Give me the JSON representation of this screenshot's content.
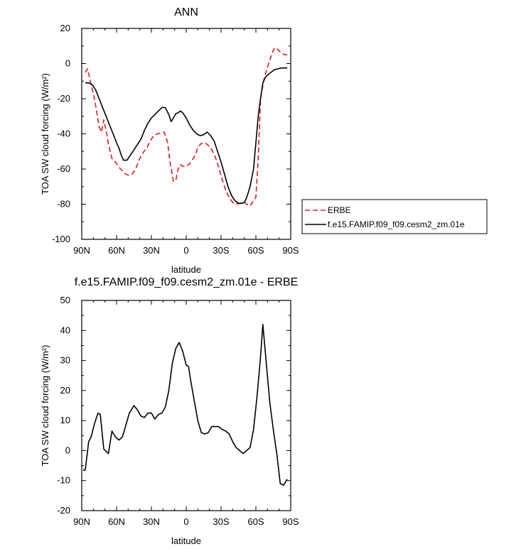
{
  "chart_data": [
    {
      "type": "line",
      "title": "ANN",
      "xlabel": "latitude",
      "ylabel": "TOA SW cloud forcing (W/m²)",
      "xlim": [
        -90,
        90
      ],
      "ylim": [
        -100,
        20
      ],
      "xticks": [
        -90,
        -60,
        -30,
        0,
        30,
        60,
        90
      ],
      "xtick_labels": [
        "90N",
        "60N",
        "30N",
        "0",
        "30S",
        "60S",
        "90S"
      ],
      "yticks": [
        -100,
        -80,
        -60,
        -40,
        -20,
        0,
        20
      ],
      "ytick_labels": [
        "-100",
        "-80",
        "-60",
        "-40",
        "-20",
        "0",
        "20"
      ],
      "legend_position": "outside-right",
      "series": [
        {
          "name": "ERBE",
          "color": "#e41a1c",
          "dash": "dashed",
          "x": [
            -87,
            -85,
            -82,
            -80,
            -78,
            -75,
            -73,
            -71,
            -69,
            -67,
            -64,
            -61,
            -58,
            -55,
            -52,
            -49,
            -46,
            -43,
            -40,
            -37,
            -34,
            -31,
            -28,
            -25,
            -22,
            -19,
            -16,
            -14,
            -11,
            -9,
            -7,
            -5,
            -3,
            0,
            3,
            5,
            8,
            10,
            13,
            16,
            19,
            22,
            25,
            28,
            31,
            34,
            37,
            40,
            43,
            46,
            48,
            50,
            52,
            55,
            58,
            60,
            62,
            64,
            67,
            70,
            73,
            76,
            79,
            82,
            85,
            87
          ],
          "y": [
            -5,
            -3,
            -12,
            -17,
            -24,
            -36,
            -39,
            -32,
            -38,
            -46,
            -54,
            -56,
            -59,
            -61,
            -63,
            -63.5,
            -62.5,
            -59,
            -54,
            -50.5,
            -48,
            -44,
            -41,
            -40,
            -39.5,
            -39,
            -45,
            -56,
            -67,
            -66.5,
            -60,
            -57.5,
            -58.5,
            -58.5,
            -57,
            -55,
            -52,
            -47.5,
            -45.5,
            -45,
            -46.5,
            -49,
            -53,
            -59,
            -66,
            -72,
            -76,
            -79,
            -80,
            -79.5,
            -79,
            -79,
            -80,
            -81,
            -78,
            -76,
            -54,
            -20,
            -9,
            -2,
            4,
            9,
            8,
            6,
            5,
            5
          ]
        },
        {
          "name": "f.e15.FAMIP.f09_f09.cesm2_zm.01e",
          "color": "#000000",
          "dash": "solid",
          "x": [
            -87,
            -84,
            -81,
            -78,
            -75,
            -72,
            -69,
            -66,
            -63,
            -60,
            -58,
            -56,
            -54,
            -51,
            -48,
            -45,
            -42,
            -39,
            -36,
            -33,
            -30,
            -27,
            -24,
            -21,
            -18,
            -15,
            -13,
            -11,
            -9,
            -7,
            -5,
            -3,
            0,
            3,
            6,
            9,
            12,
            15,
            18,
            21,
            24,
            27,
            30,
            33,
            36,
            39,
            42,
            45,
            48,
            50,
            52,
            55,
            58,
            60,
            62,
            64,
            66,
            68,
            70,
            73,
            76,
            79,
            82,
            85,
            87
          ],
          "y": [
            -11,
            -11,
            -12,
            -15,
            -20,
            -25,
            -30,
            -35,
            -40,
            -45,
            -48,
            -52,
            -55,
            -55,
            -52,
            -49,
            -46,
            -43,
            -38,
            -34,
            -31,
            -29,
            -27,
            -25,
            -25,
            -29,
            -33,
            -31,
            -28.5,
            -28,
            -27,
            -28,
            -31,
            -35,
            -38,
            -40,
            -41,
            -40.5,
            -39,
            -41,
            -44,
            -50,
            -56,
            -63,
            -70,
            -75,
            -78,
            -79.5,
            -79.5,
            -79,
            -76.5,
            -70,
            -60,
            -45,
            -30,
            -20,
            -11,
            -8,
            -6.5,
            -5,
            -3.5,
            -3,
            -2.5,
            -2.5,
            -2.5
          ]
        }
      ]
    },
    {
      "type": "line",
      "title": "f.e15.FAMIP.f09_f09.cesm2_zm.01e - ERBE",
      "xlabel": "latitude",
      "ylabel": "TOA SW cloud forcing (W/m²)",
      "xlim": [
        -90,
        90
      ],
      "ylim": [
        -20,
        50
      ],
      "xticks": [
        -90,
        -60,
        -30,
        0,
        30,
        60,
        90
      ],
      "xtick_labels": [
        "90N",
        "60N",
        "30N",
        "0",
        "30S",
        "60S",
        "90S"
      ],
      "yticks": [
        -20,
        -10,
        0,
        10,
        20,
        30,
        40,
        50
      ],
      "ytick_labels": [
        "-20",
        "-10",
        "0",
        "10",
        "20",
        "30",
        "40",
        "50"
      ],
      "series": [
        {
          "color": "#000000",
          "dash": "solid",
          "x": [
            -89,
            -87,
            -84,
            -82,
            -79,
            -76,
            -74,
            -71,
            -67,
            -64,
            -61,
            -58,
            -55,
            -52,
            -49,
            -45,
            -42,
            -39,
            -36,
            -33,
            -30,
            -27,
            -24,
            -21,
            -18,
            -15,
            -12,
            -9,
            -6,
            -3,
            0,
            2,
            4,
            7,
            10,
            13,
            16,
            19,
            22,
            25,
            28,
            31,
            34,
            37,
            40,
            43,
            46,
            49,
            52,
            55,
            58,
            61,
            64,
            66,
            69,
            72,
            75,
            78,
            81,
            84,
            87
          ],
          "y": [
            -6.5,
            -6.5,
            3,
            4.5,
            9,
            12.5,
            12,
            0.5,
            -1,
            6.5,
            4.5,
            3.5,
            4.5,
            8.5,
            12.5,
            15,
            13.5,
            11.5,
            11,
            12.5,
            12.5,
            10.5,
            12,
            12.5,
            14.5,
            20,
            29,
            34,
            36,
            33,
            28.5,
            28,
            23,
            16.5,
            10,
            6,
            5.5,
            6,
            8,
            8,
            8,
            7,
            6.5,
            5.5,
            3,
            1,
            0,
            -1,
            0,
            1,
            7,
            18,
            31,
            42,
            29,
            16,
            7,
            -1,
            -11,
            -11.5,
            -9.5
          ]
        }
      ]
    }
  ]
}
